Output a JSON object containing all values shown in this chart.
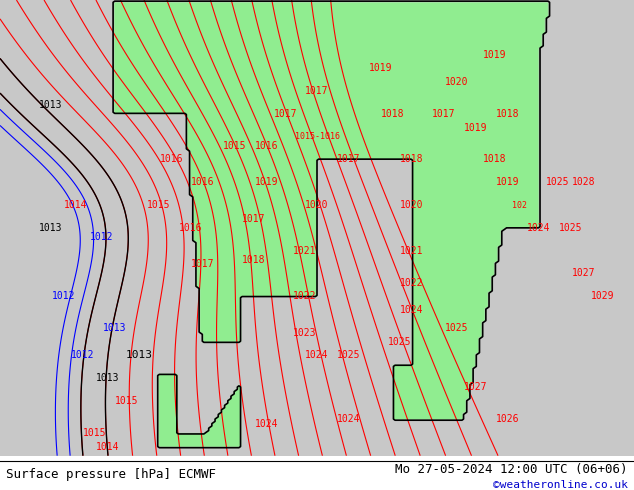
{
  "title_left": "Surface pressure [hPa] ECMWF",
  "title_right": "Mo 27-05-2024 12:00 UTC (06+06)",
  "watermark": "©weatheronline.co.uk",
  "bg_color": "#d8d8d8",
  "land_color": "#90ee90",
  "sea_color": "#d8d8d8",
  "contour_color_red": "#ff0000",
  "contour_color_black": "#000000",
  "contour_color_blue": "#0000ff",
  "label_fontsize": 8,
  "footer_fontsize": 9,
  "watermark_color": "#0000cc",
  "fig_width": 6.34,
  "fig_height": 4.9,
  "dpi": 100
}
